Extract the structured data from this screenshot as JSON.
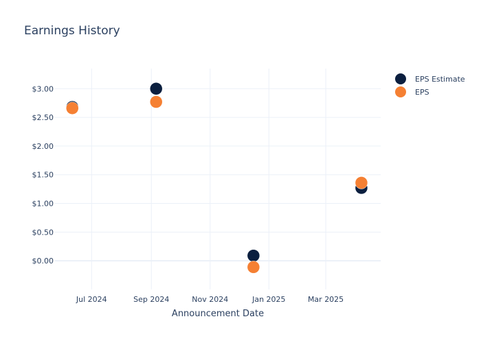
{
  "chart_data": {
    "type": "scatter",
    "title": "Earnings History",
    "xlabel": "Announcement Date",
    "ylabel": "",
    "x_ticks": [
      "Jul 2024",
      "Sep 2024",
      "Nov 2024",
      "Jan 2025",
      "Mar 2025"
    ],
    "x_tick_dates": [
      "2024-07-01",
      "2024-09-01",
      "2024-11-01",
      "2025-01-01",
      "2025-03-01"
    ],
    "xlim": [
      "2024-05-24",
      "2025-04-27"
    ],
    "y_ticks": [
      "$0.00",
      "$0.50",
      "$1.00",
      "$1.50",
      "$2.00",
      "$2.50",
      "$3.00"
    ],
    "y_tick_values": [
      0,
      0.5,
      1.0,
      1.5,
      2.0,
      2.5,
      3.0
    ],
    "ylim": [
      -0.5,
      3.35
    ],
    "grid": true,
    "legend_position": "top-right",
    "series": [
      {
        "name": "EPS Estimate",
        "color": "#0b1f3f",
        "points": [
          {
            "x": "2024-06-11",
            "y": 2.68
          },
          {
            "x": "2024-09-06",
            "y": 3.0
          },
          {
            "x": "2024-12-16",
            "y": 0.09
          },
          {
            "x": "2025-04-07",
            "y": 1.27
          }
        ]
      },
      {
        "name": "EPS",
        "color": "#f58033",
        "points": [
          {
            "x": "2024-06-11",
            "y": 2.66
          },
          {
            "x": "2024-09-06",
            "y": 2.77
          },
          {
            "x": "2024-12-16",
            "y": -0.11
          },
          {
            "x": "2025-04-07",
            "y": 1.36
          }
        ]
      }
    ]
  }
}
